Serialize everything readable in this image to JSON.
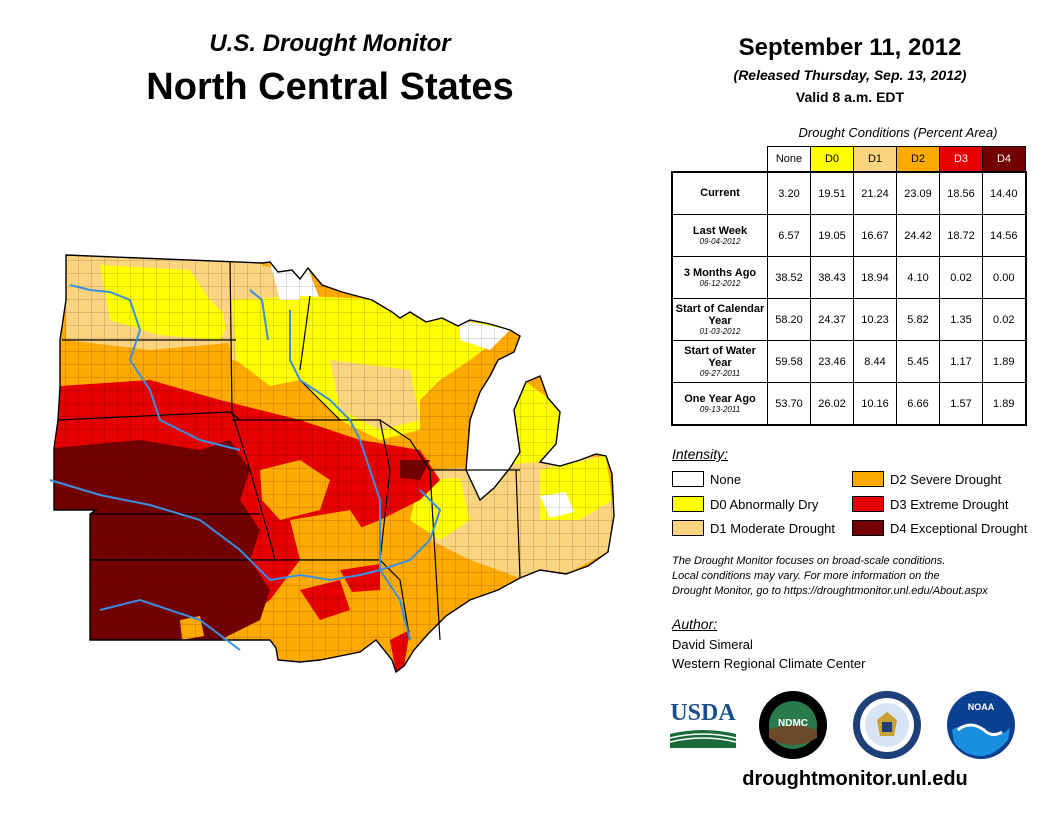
{
  "header": {
    "subtitle": "U.S. Drought Monitor",
    "title": "North Central States",
    "date": "September 11, 2012",
    "released": "(Released Thursday, Sep. 13, 2012)",
    "valid": "Valid 8 a.m. EDT"
  },
  "conditions": {
    "caption": "Drought Conditions (Percent Area)",
    "columns": [
      "None",
      "D0",
      "D1",
      "D2",
      "D3",
      "D4"
    ],
    "rows": [
      {
        "label": "Current",
        "date": "",
        "values": [
          "3.20",
          "19.51",
          "21.24",
          "23.09",
          "18.56",
          "14.40"
        ]
      },
      {
        "label": "Last Week",
        "date": "09-04-2012",
        "values": [
          "6.57",
          "19.05",
          "16.67",
          "24.42",
          "18.72",
          "14.56"
        ]
      },
      {
        "label": "3 Months Ago",
        "date": "06-12-2012",
        "values": [
          "38.52",
          "38.43",
          "18.94",
          "4.10",
          "0.02",
          "0.00"
        ]
      },
      {
        "label": "Start of Calendar Year",
        "date": "01-03-2012",
        "values": [
          "58.20",
          "24.37",
          "10.23",
          "5.82",
          "1.35",
          "0.02"
        ]
      },
      {
        "label": "Start of Water Year",
        "date": "09-27-2011",
        "values": [
          "59.58",
          "23.46",
          "8.44",
          "5.45",
          "1.17",
          "1.89"
        ]
      },
      {
        "label": "One Year Ago",
        "date": "09-13-2011",
        "values": [
          "53.70",
          "26.02",
          "10.16",
          "6.66",
          "1.57",
          "1.89"
        ]
      }
    ]
  },
  "legend": {
    "heading": "Intensity:",
    "items": [
      {
        "label": "None",
        "color": "#ffffff"
      },
      {
        "label": "D0 Abnormally Dry",
        "color": "#ffff00"
      },
      {
        "label": "D1 Moderate Drought",
        "color": "#fcd37f"
      },
      {
        "label": "D2 Severe Drought",
        "color": "#ffaa00"
      },
      {
        "label": "D3 Extreme Drought",
        "color": "#e60000"
      },
      {
        "label": "D4 Exceptional Drought",
        "color": "#730000"
      }
    ]
  },
  "disclaimer": {
    "line1": "The Drought Monitor focuses on broad-scale conditions.",
    "line2": "Local conditions may vary. For more information on the",
    "line3": "Drought Monitor, go to https://droughtmonitor.unl.edu/About.aspx"
  },
  "author": {
    "heading": "Author:",
    "name": "David Simeral",
    "org": "Western Regional Climate Center"
  },
  "logos": {
    "usda": "USDA",
    "ndmc": "NDMC",
    "noaa": "NOAA",
    "usda_color": "#1a4f8b"
  },
  "footer": {
    "website": "droughtmonitor.unl.edu"
  }
}
